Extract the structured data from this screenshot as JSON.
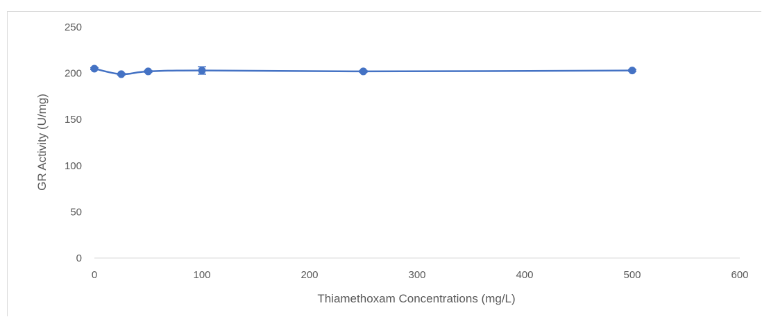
{
  "chart_data": {
    "type": "scatter",
    "title": "",
    "xlabel": "Thiamethoxam Concentrations  (mg/L)",
    "ylabel": "GR Activity (U/mg)",
    "xlim": [
      0,
      600
    ],
    "ylim": [
      0,
      250
    ],
    "x_ticks": [
      0,
      100,
      200,
      300,
      400,
      500,
      600
    ],
    "y_ticks": [
      0,
      50,
      100,
      150,
      200,
      250
    ],
    "grid": false,
    "line_smooth": true,
    "series": [
      {
        "color": "#4472c4",
        "marker": "circle",
        "x": [
          0,
          25,
          50,
          100,
          250,
          500
        ],
        "y": [
          205,
          199,
          202,
          203,
          202,
          203
        ],
        "error": [
          1,
          1,
          1,
          4,
          1,
          1
        ]
      }
    ]
  }
}
